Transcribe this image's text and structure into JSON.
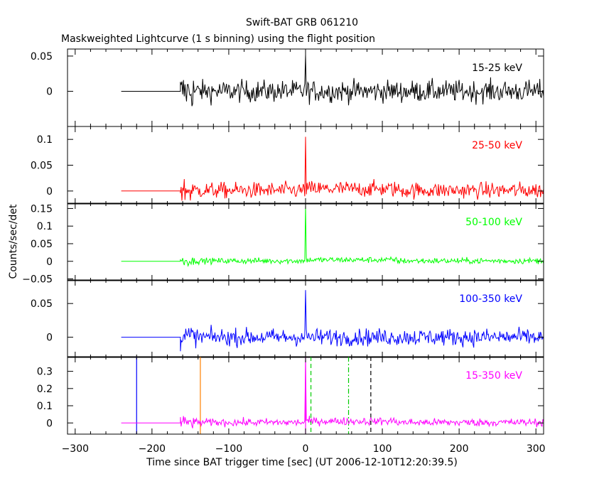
{
  "chart_data": {
    "type": "line",
    "title": "Swift-BAT GRB 061210",
    "subtitle": "Maskweighted Lightcurve (1 s binning) using the flight position",
    "xlabel": "Time since BAT trigger time [sec] (UT 2006-12-10T12:20:39.5)",
    "ylabel": "Counts/sec/det",
    "xlim": [
      -310,
      310
    ],
    "x_ticks": [
      -300,
      -200,
      -100,
      0,
      100,
      200,
      300
    ],
    "series_start": -240,
    "data_start": -163,
    "panels": [
      {
        "band": "15-25 keV",
        "color": "#000000",
        "ylim": [
          -0.05,
          0.06
        ],
        "y_ticks": [
          0,
          0.05
        ],
        "y_tick_labels": [
          "0",
          "0.05"
        ],
        "noise_sigma": 0.011,
        "post_level": 0.0,
        "spikes": [
          {
            "x": 0,
            "y": 0.052
          }
        ]
      },
      {
        "band": "25-50 keV",
        "color": "#ff0000",
        "ylim": [
          -0.025,
          0.125
        ],
        "y_ticks": [
          0,
          0.05,
          0.1
        ],
        "y_tick_labels": [
          "0",
          "0.05",
          "0.1"
        ],
        "noise_sigma": 0.011,
        "post_level": 0.004,
        "spikes": [
          {
            "x": 0,
            "y": 0.105
          }
        ]
      },
      {
        "band": "50-100 keV",
        "color": "#00ff00",
        "ylim": [
          -0.055,
          0.165
        ],
        "y_ticks": [
          -0.05,
          0,
          0.05,
          0.1,
          0.15
        ],
        "y_tick_labels": [
          "−0.05",
          "0",
          "0.05",
          "0.1",
          "0.15"
        ],
        "noise_sigma": 0.006,
        "post_level": 0.004,
        "spikes": [
          {
            "x": 0,
            "y": 0.16
          }
        ]
      },
      {
        "band": "100-350 keV",
        "color": "#0000ff",
        "ylim": [
          -0.03,
          0.085
        ],
        "y_ticks": [
          0,
          0.05
        ],
        "y_tick_labels": [
          "0",
          "0.05"
        ],
        "noise_sigma": 0.009,
        "post_level": 0.0,
        "spikes": [
          {
            "x": 0,
            "y": 0.07
          }
        ]
      },
      {
        "band": "15-350 keV",
        "color": "#ff00ff",
        "ylim": [
          -0.065,
          0.385
        ],
        "y_ticks": [
          0,
          0.1,
          0.2,
          0.3
        ],
        "y_tick_labels": [
          "0",
          "0.1",
          "0.2",
          "0.3"
        ],
        "noise_sigma": 0.016,
        "post_level": 0.01,
        "spikes": [
          {
            "x": 0,
            "y": 0.37
          }
        ]
      }
    ],
    "markers": [
      {
        "x": -220,
        "color": "#0000ff",
        "style": "solid"
      },
      {
        "x": -137,
        "color": "#ff8000",
        "style": "solid"
      },
      {
        "x": 0,
        "color": "#ff00ff",
        "style": "solid"
      },
      {
        "x": 7,
        "color": "#00cc00",
        "style": "dashed"
      },
      {
        "x": 56,
        "color": "#00cc00",
        "style": "dashdot"
      },
      {
        "x": 85,
        "color": "#000000",
        "style": "dashed"
      }
    ]
  }
}
